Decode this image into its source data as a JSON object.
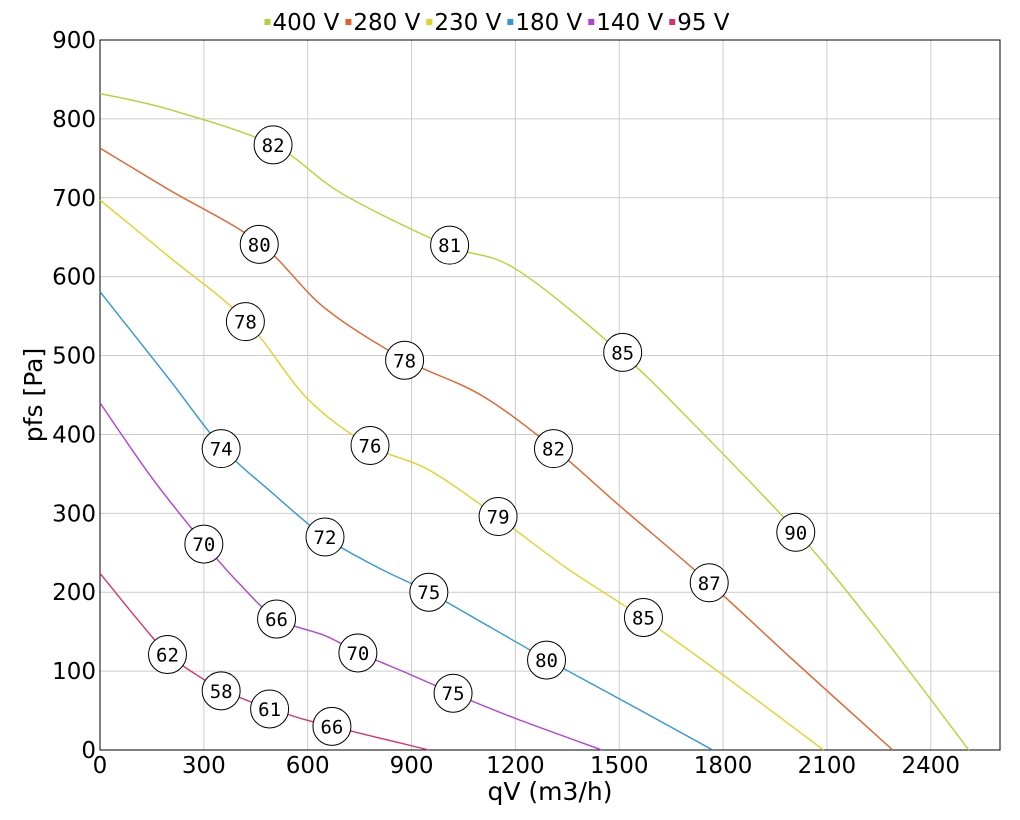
{
  "chart_data": {
    "type": "line",
    "xlabel": "qV (m3/h)",
    "ylabel": "pfs [Pa]",
    "xlim": [
      0,
      2600
    ],
    "ylim": [
      0,
      900
    ],
    "x_ticks": [
      0,
      300,
      600,
      900,
      1200,
      1500,
      1800,
      2100,
      2400
    ],
    "y_ticks": [
      0,
      100,
      200,
      300,
      400,
      500,
      600,
      700,
      800,
      900
    ],
    "grid": true,
    "legend_position": "top-center",
    "series": [
      {
        "name": "400 V",
        "color": "#b5d334",
        "points": [
          [
            0,
            832
          ],
          [
            200,
            812
          ],
          [
            500,
            767
          ],
          [
            700,
            705
          ],
          [
            1000,
            640
          ],
          [
            1200,
            610
          ],
          [
            1500,
            505
          ],
          [
            1700,
            420
          ],
          [
            2010,
            278
          ],
          [
            2250,
            150
          ],
          [
            2510,
            0
          ]
        ],
        "efficiency_labels": [
          {
            "x": 500,
            "y": 767,
            "label": "82"
          },
          {
            "x": 1010,
            "y": 640,
            "label": "81"
          },
          {
            "x": 1510,
            "y": 504,
            "label": "85"
          },
          {
            "x": 2010,
            "y": 276,
            "label": "90"
          }
        ]
      },
      {
        "name": "280 V",
        "color": "#e5602a",
        "points": [
          [
            0,
            763
          ],
          [
            200,
            710
          ],
          [
            460,
            643
          ],
          [
            650,
            560
          ],
          [
            880,
            495
          ],
          [
            1100,
            450
          ],
          [
            1310,
            383
          ],
          [
            1500,
            310
          ],
          [
            1760,
            212
          ],
          [
            2000,
            115
          ],
          [
            2290,
            0
          ]
        ],
        "efficiency_labels": [
          {
            "x": 460,
            "y": 641,
            "label": "80"
          },
          {
            "x": 880,
            "y": 494,
            "label": "78"
          },
          {
            "x": 1310,
            "y": 382,
            "label": "82"
          },
          {
            "x": 1760,
            "y": 212,
            "label": "87"
          }
        ]
      },
      {
        "name": "230 V",
        "color": "#e2d225",
        "points": [
          [
            0,
            697
          ],
          [
            200,
            625
          ],
          [
            420,
            545
          ],
          [
            600,
            445
          ],
          [
            780,
            386
          ],
          [
            950,
            355
          ],
          [
            1150,
            295
          ],
          [
            1350,
            230
          ],
          [
            1570,
            167
          ],
          [
            1800,
            95
          ],
          [
            2090,
            0
          ]
        ],
        "efficiency_labels": [
          {
            "x": 420,
            "y": 543,
            "label": "78"
          },
          {
            "x": 780,
            "y": 386,
            "label": "76"
          },
          {
            "x": 1150,
            "y": 296,
            "label": "79"
          },
          {
            "x": 1570,
            "y": 168,
            "label": "85"
          }
        ]
      },
      {
        "name": "180 V",
        "color": "#2f97db",
        "points": [
          [
            0,
            581
          ],
          [
            200,
            470
          ],
          [
            350,
            385
          ],
          [
            500,
            325
          ],
          [
            650,
            270
          ],
          [
            800,
            232
          ],
          [
            950,
            200
          ],
          [
            1130,
            155
          ],
          [
            1290,
            115
          ],
          [
            1500,
            65
          ],
          [
            1770,
            0
          ]
        ],
        "efficiency_labels": [
          {
            "x": 350,
            "y": 382,
            "label": "74"
          },
          {
            "x": 650,
            "y": 270,
            "label": "72"
          },
          {
            "x": 950,
            "y": 200,
            "label": "75"
          },
          {
            "x": 1290,
            "y": 114,
            "label": "80"
          }
        ]
      },
      {
        "name": "140 V",
        "color": "#b33fdc",
        "points": [
          [
            0,
            440
          ],
          [
            150,
            345
          ],
          [
            300,
            262
          ],
          [
            400,
            212
          ],
          [
            510,
            167
          ],
          [
            650,
            145
          ],
          [
            745,
            124
          ],
          [
            900,
            95
          ],
          [
            1020,
            72
          ],
          [
            1200,
            40
          ],
          [
            1450,
            0
          ]
        ],
        "efficiency_labels": [
          {
            "x": 300,
            "y": 261,
            "label": "70"
          },
          {
            "x": 510,
            "y": 166,
            "label": "66"
          },
          {
            "x": 745,
            "y": 123,
            "label": "70"
          },
          {
            "x": 1020,
            "y": 72,
            "label": "75"
          }
        ]
      },
      {
        "name": "95 V",
        "color": "#d9336d",
        "points": [
          [
            0,
            224
          ],
          [
            100,
            170
          ],
          [
            195,
            122
          ],
          [
            280,
            95
          ],
          [
            350,
            77
          ],
          [
            430,
            62
          ],
          [
            490,
            53
          ],
          [
            580,
            40
          ],
          [
            670,
            30
          ],
          [
            800,
            16
          ],
          [
            950,
            0
          ]
        ],
        "efficiency_labels": [
          {
            "x": 195,
            "y": 121,
            "label": "62"
          },
          {
            "x": 350,
            "y": 75,
            "label": "58"
          },
          {
            "x": 490,
            "y": 52,
            "label": "61"
          },
          {
            "x": 670,
            "y": 30,
            "label": "66"
          }
        ]
      }
    ]
  }
}
